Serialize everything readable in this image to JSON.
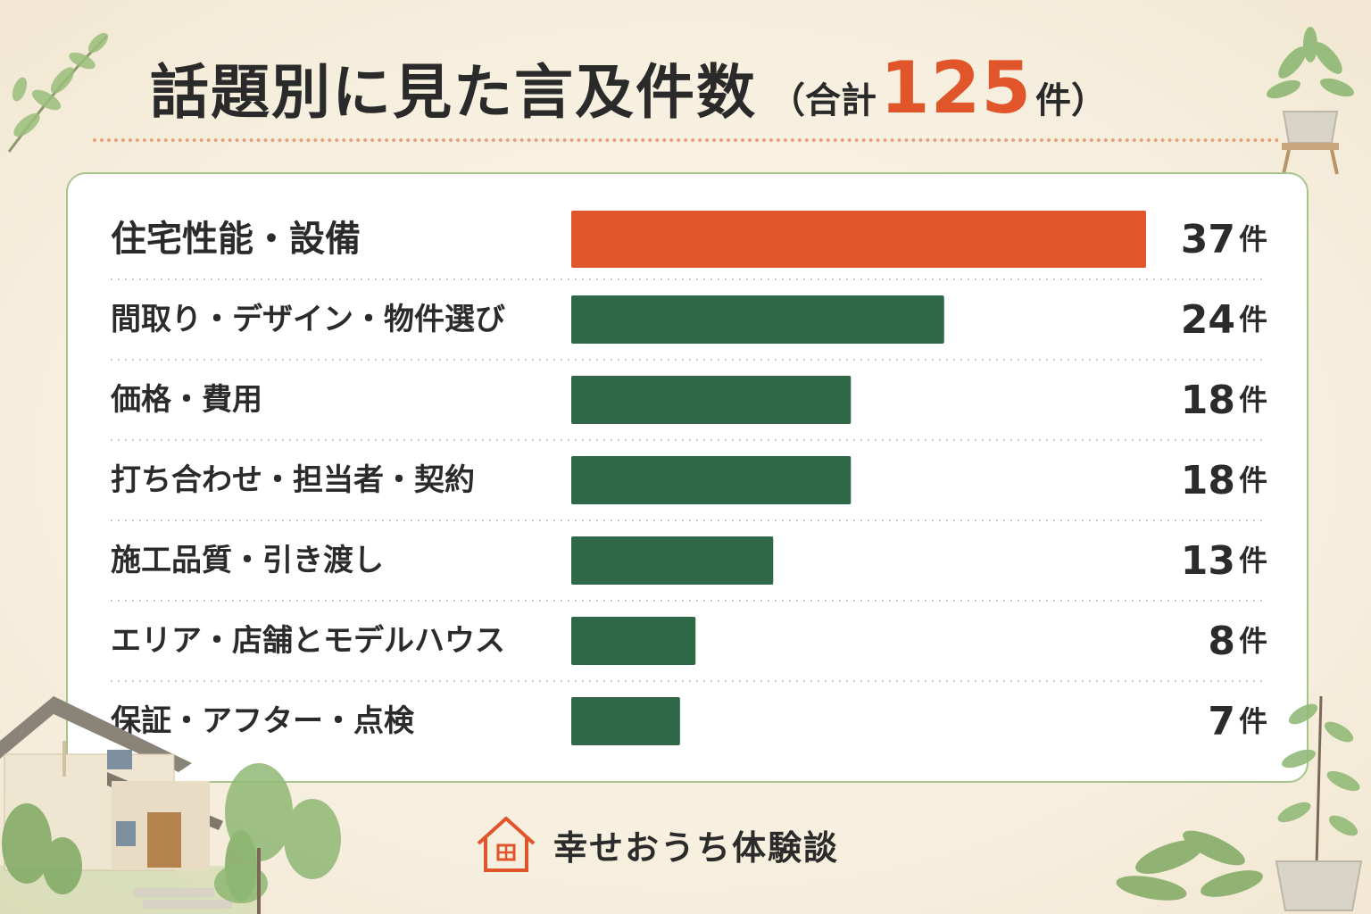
{
  "title": {
    "main": "話題別に見た言及件数",
    "paren_open": "（合計",
    "total": "125",
    "paren_close": "件）"
  },
  "colors": {
    "highlight": "#e0552a",
    "bar": "#2e6847",
    "accent_dots": "#e6a27b",
    "panel_border": "#a8c48d"
  },
  "chart_data": {
    "type": "bar",
    "orientation": "horizontal",
    "categories": [
      "住宅性能・設備",
      "間取り・デザイン・物件選び",
      "価格・費用",
      "打ち合わせ・担当者・契約",
      "施工品質・引き渡し",
      "エリア・店舗とモデルハウス",
      "保証・アフター・点検"
    ],
    "values": [
      37,
      24,
      18,
      18,
      13,
      8,
      7
    ],
    "unit": "件",
    "highlight_index": 0,
    "grid": false,
    "legend": "none"
  },
  "footer": {
    "brand": "幸せおうち体験談",
    "icon": "house-icon"
  },
  "decorations": [
    "leaf-branch-icon",
    "potted-plant-icon",
    "house-illustration",
    "shrub-icon"
  ]
}
